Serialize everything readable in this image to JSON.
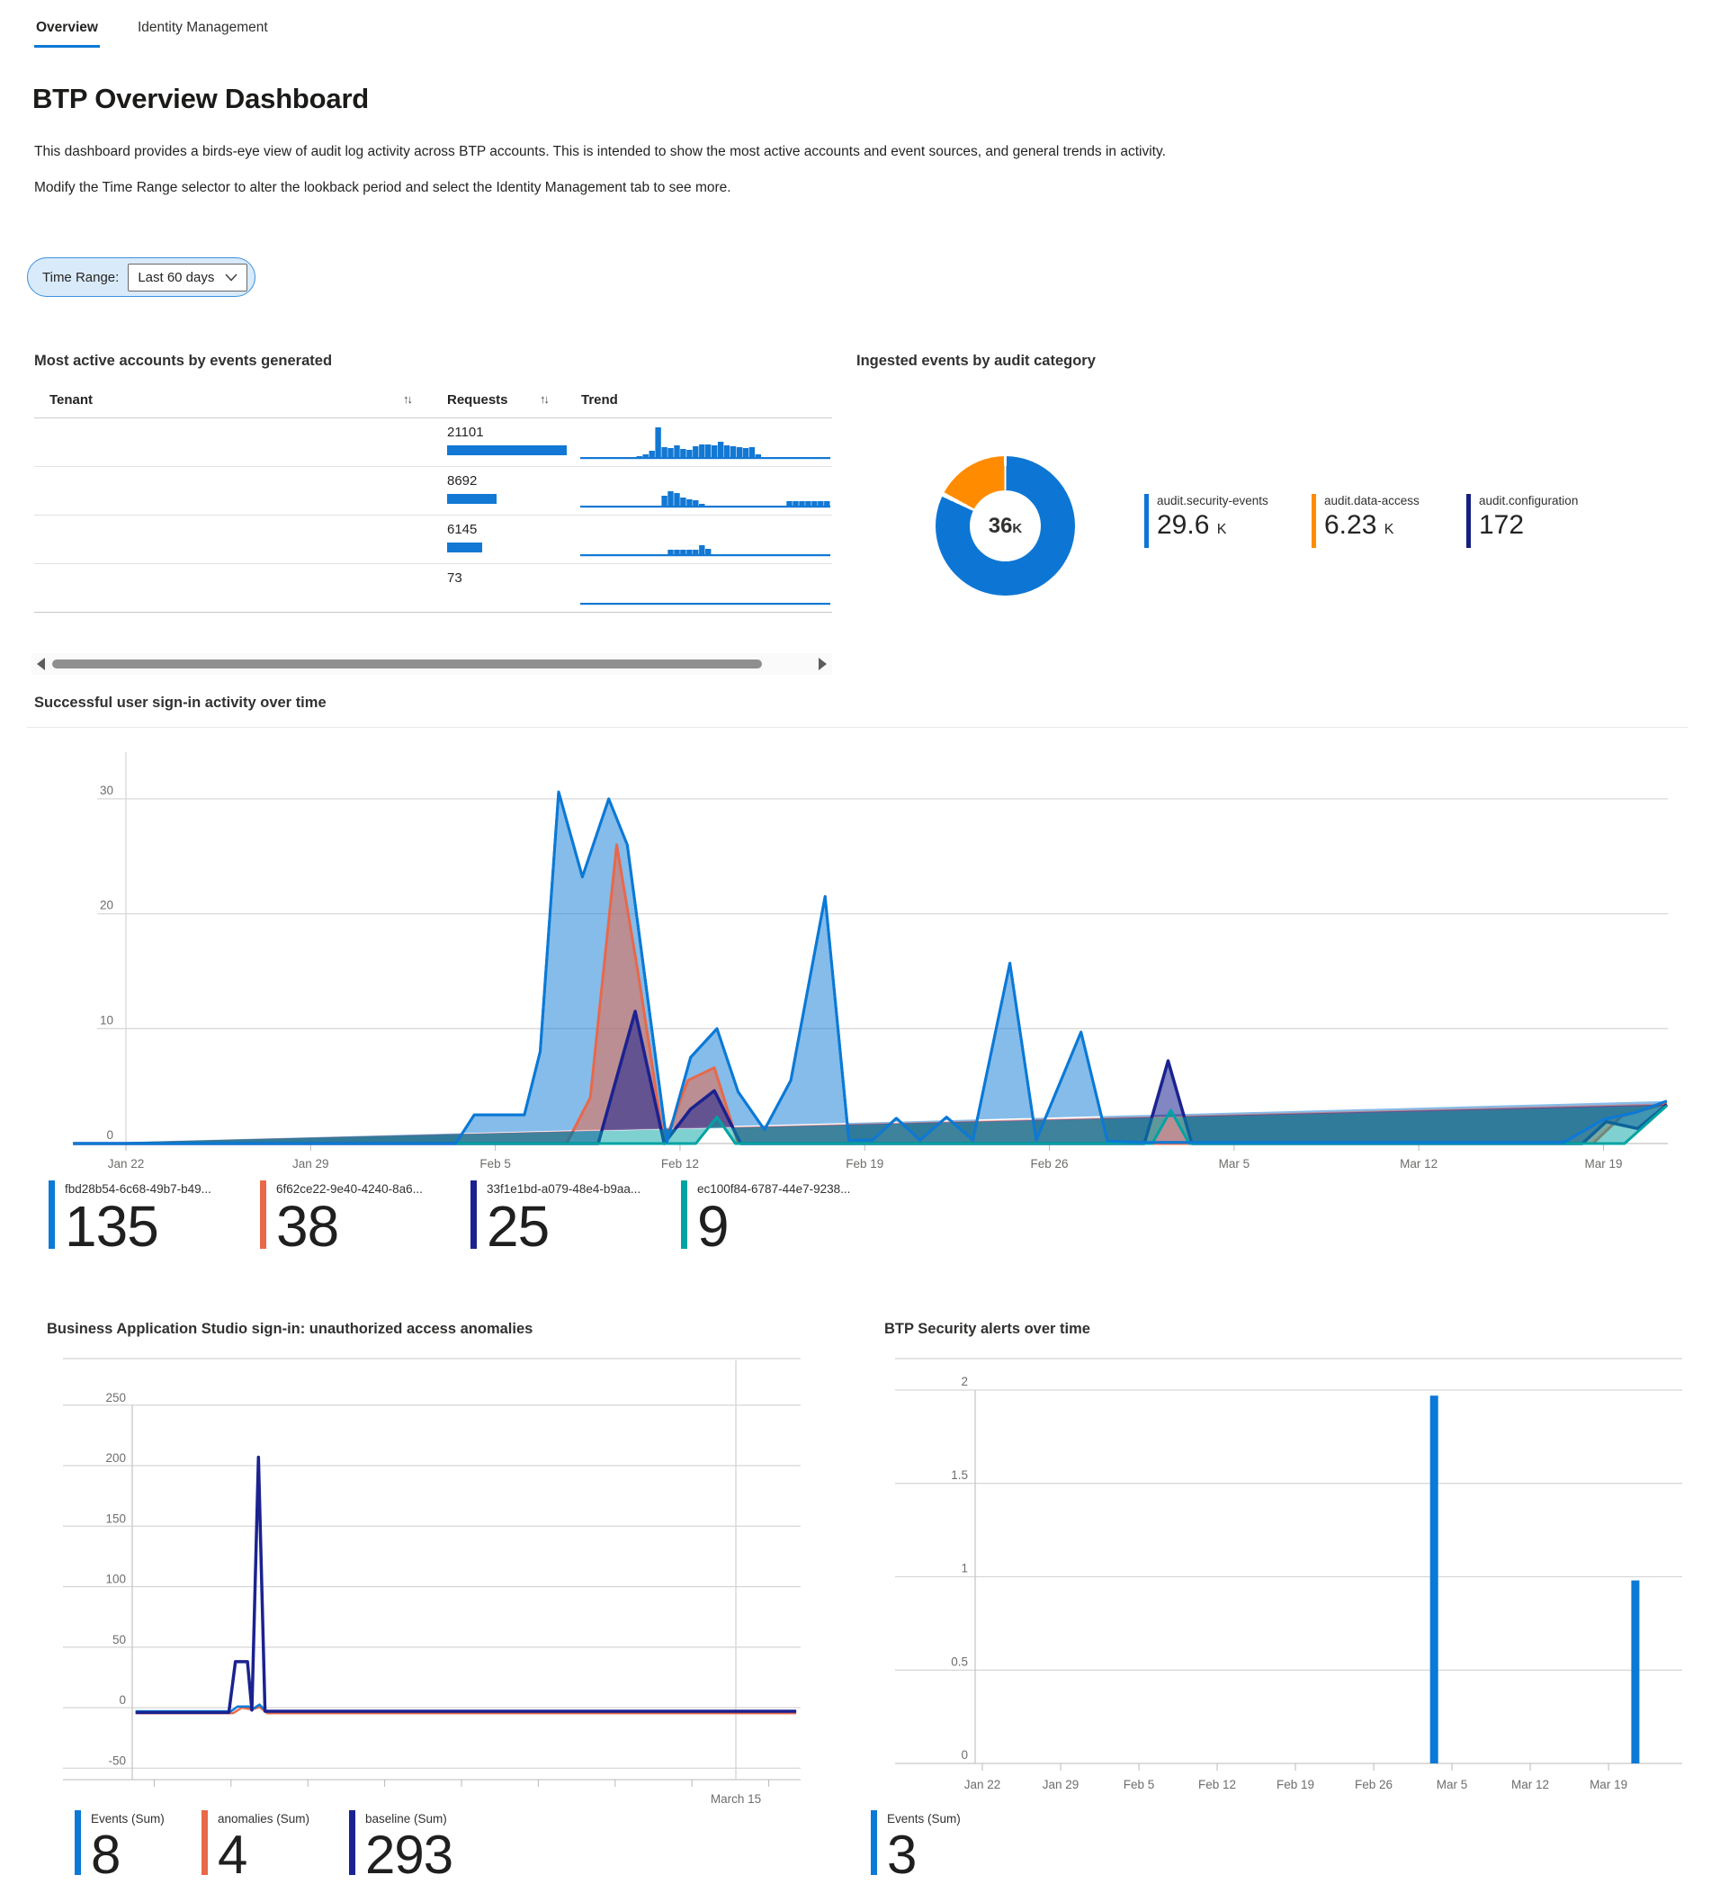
{
  "tabs": [
    {
      "label": "Overview",
      "active": true
    },
    {
      "label": "Identity Management",
      "active": false
    }
  ],
  "header": {
    "title": "BTP Overview Dashboard",
    "description1": "This dashboard provides a birds-eye view of audit log activity across BTP accounts. This is intended to show the most active accounts and event sources, and general trends in activity.",
    "description2": "Modify the Time Range selector to alter the lookback period and select the Identity Management tab to see more."
  },
  "time_range": {
    "label": "Time Range:",
    "value": "Last 60 days"
  },
  "icons": {
    "sort": "↑↓"
  },
  "colors": {
    "accent": "#0b79d6",
    "bar_blue": "#1278d4",
    "salmon": "#e8684a",
    "navy": "#1b2290",
    "teal": "#00a3a3",
    "orange": "#ff8c00",
    "donut_navy": "#16207c"
  },
  "accounts_table": {
    "title": "Most active accounts by events generated",
    "columns": [
      "Tenant",
      "Requests",
      "Trend"
    ],
    "max_requests": 21101,
    "rows": [
      {
        "tenant": "",
        "requests": "21101",
        "requests_num": 21101,
        "trend": [
          1,
          1,
          1,
          1,
          1,
          1,
          1,
          1,
          1,
          2,
          4,
          8,
          34,
          12,
          11,
          14,
          10,
          9,
          13,
          15,
          15,
          14,
          18,
          14,
          13,
          12,
          11,
          12,
          4,
          1,
          1,
          1,
          1,
          1,
          1,
          1,
          1,
          1,
          1,
          1
        ]
      },
      {
        "tenant": "",
        "requests": "8692",
        "requests_num": 8692,
        "trend": [
          1,
          1,
          1,
          1,
          1,
          1,
          1,
          1,
          1,
          1,
          1,
          1,
          1,
          12,
          17,
          15,
          10,
          8,
          7,
          3,
          1,
          1,
          1,
          1,
          1,
          1,
          1,
          1,
          1,
          1,
          1,
          1,
          1,
          6,
          6,
          6,
          6,
          6,
          6,
          6
        ]
      },
      {
        "tenant": "",
        "requests": "6145",
        "requests_num": 6145,
        "trend": [
          1,
          1,
          1,
          1,
          1,
          1,
          1,
          1,
          1,
          1,
          1,
          1,
          1,
          1,
          6,
          6,
          6,
          6,
          6,
          11,
          7,
          1,
          1,
          1,
          1,
          1,
          1,
          1,
          1,
          1,
          1,
          1,
          1,
          1,
          1,
          1,
          1,
          1,
          1,
          1
        ]
      },
      {
        "tenant": "",
        "requests": "73",
        "requests_num": 73,
        "trend": [
          1,
          1,
          1,
          1,
          1,
          1,
          1,
          1,
          1,
          1,
          1,
          1,
          1,
          1,
          1,
          1,
          1,
          1,
          1,
          1,
          1,
          1,
          1,
          1,
          1,
          1,
          1,
          1,
          1,
          1,
          1,
          1,
          1,
          1,
          1,
          1,
          1,
          1,
          1,
          1
        ]
      }
    ]
  },
  "chart_data": [
    {
      "id": "category_donut",
      "type": "pie",
      "title": "Ingested events by audit category",
      "center_value": "36",
      "center_unit": "K",
      "slices": [
        {
          "label": "audit.security-events",
          "value": 29600,
          "value_label": "29.6",
          "unit": "K",
          "color": "#0d76d4"
        },
        {
          "label": "audit.configuration",
          "value": 172,
          "value_label": "172",
          "unit": "",
          "color": "#16207c"
        },
        {
          "label": "audit.data-access",
          "value": 6230,
          "value_label": "6.23",
          "unit": "K",
          "color": "#ff8c00"
        }
      ],
      "legend_order": [
        0,
        2,
        1
      ]
    },
    {
      "id": "signin_area",
      "type": "area",
      "title": "Successful user sign-in activity over time",
      "y_ticks": [
        {
          "v": 30,
          "label": "30"
        },
        {
          "v": 20,
          "label": "20"
        },
        {
          "v": 10,
          "label": "10"
        },
        {
          "v": 0,
          "label": "0"
        }
      ],
      "x_ticks": [
        {
          "day": 2,
          "label": "Jan 22"
        },
        {
          "day": 9,
          "label": "Jan 29"
        },
        {
          "day": 16,
          "label": "Feb 5"
        },
        {
          "day": 23,
          "label": "Feb 12"
        },
        {
          "day": 30,
          "label": "Feb 19"
        },
        {
          "day": 37,
          "label": "Feb 26"
        },
        {
          "day": 44,
          "label": "Mar 5"
        },
        {
          "day": 51,
          "label": "Mar 12"
        },
        {
          "day": 58,
          "label": "Mar 19"
        }
      ],
      "ylim": [
        0,
        34
      ],
      "series": [
        {
          "legend_label": "fbd28b54-6c68-49b7-b49...",
          "total": "135",
          "color": "#0b79d6",
          "fill_opacity": 0.5,
          "stroke_width": 3,
          "points": [
            [
              0,
              0
            ],
            [
              14.5,
              0
            ],
            [
              15.2,
              2.5
            ],
            [
              17.1,
              2.5
            ],
            [
              17.7,
              8
            ],
            [
              18.4,
              30.6
            ],
            [
              19.3,
              23.2
            ],
            [
              20.3,
              30
            ],
            [
              21,
              26
            ],
            [
              22.5,
              0.1
            ],
            [
              23.4,
              7.5
            ],
            [
              24.4,
              10
            ],
            [
              25.2,
              4.5
            ],
            [
              26.2,
              1.2
            ],
            [
              27.2,
              5.5
            ],
            [
              28.5,
              21.5
            ],
            [
              29.4,
              0.3
            ],
            [
              30.3,
              0.3
            ],
            [
              31.2,
              2.2
            ],
            [
              32.1,
              0.3
            ],
            [
              33.1,
              2.3
            ],
            [
              34.1,
              0.3
            ],
            [
              35.5,
              15.7
            ],
            [
              36.5,
              0.3
            ],
            [
              38.2,
              9.7
            ],
            [
              39.2,
              0.2
            ],
            [
              40.5,
              0.1
            ],
            [
              56.5,
              0.1
            ],
            [
              58,
              2.1
            ],
            [
              59.2,
              2.7
            ],
            [
              60.4,
              3.7
            ]
          ]
        },
        {
          "legend_label": "6f62ce22-9e40-4240-8a6...",
          "total": "38",
          "color": "#e8684a",
          "fill_opacity": 0.55,
          "stroke_width": 3,
          "points": [
            [
              0,
              0
            ],
            [
              18.7,
              0
            ],
            [
              19.6,
              4
            ],
            [
              20.6,
              26
            ],
            [
              21.4,
              15
            ],
            [
              22.4,
              0
            ],
            [
              23.3,
              5.5
            ],
            [
              24.3,
              6.6
            ],
            [
              25.2,
              0
            ],
            [
              26,
              0
            ],
            [
              57.6,
              0
            ],
            [
              58.7,
              2.4
            ],
            [
              60.4,
              3.5
            ]
          ]
        },
        {
          "legend_label": "33f1e1bd-a079-48e4-b9aa...",
          "total": "25",
          "color": "#1b2290",
          "fill_opacity": 0.55,
          "stroke_width": 3.5,
          "points": [
            [
              0,
              0
            ],
            [
              19.9,
              0
            ],
            [
              21.3,
              11.5
            ],
            [
              22.4,
              0
            ],
            [
              23.4,
              3
            ],
            [
              24.3,
              4.6
            ],
            [
              25.3,
              0
            ],
            [
              40.6,
              0
            ],
            [
              41.5,
              7.2
            ],
            [
              42.4,
              0
            ],
            [
              57.2,
              0
            ],
            [
              58.1,
              1.9
            ],
            [
              59.3,
              1.3
            ],
            [
              60.4,
              3.4
            ]
          ]
        },
        {
          "legend_label": "ec100f84-6787-44e7-9238...",
          "total": "9",
          "color": "#00a3a3",
          "fill_opacity": 0.5,
          "stroke_width": 3,
          "points": [
            [
              0,
              0
            ],
            [
              23.6,
              0
            ],
            [
              24.4,
              2.3
            ],
            [
              25.1,
              0
            ],
            [
              40.9,
              0
            ],
            [
              41.6,
              2.9
            ],
            [
              42.3,
              0
            ],
            [
              58.8,
              0
            ],
            [
              60.4,
              3.3
            ]
          ]
        }
      ]
    },
    {
      "id": "bas_anomalies",
      "type": "line",
      "title": "Business Application Studio sign-in: unauthorized access anomalies",
      "y_ticks": [
        {
          "v": 250,
          "label": "250"
        },
        {
          "v": 200,
          "label": "200"
        },
        {
          "v": 150,
          "label": "150"
        },
        {
          "v": 100,
          "label": "100"
        },
        {
          "v": 50,
          "label": "50"
        },
        {
          "v": 0,
          "label": "0"
        },
        {
          "v": -50,
          "label": "-50"
        }
      ],
      "x_ticks_days": [
        2,
        9,
        16,
        23,
        30,
        37,
        44,
        51,
        58
      ],
      "x_marker": {
        "day": 55,
        "label": "March 15"
      },
      "ylim": [
        -50,
        250
      ],
      "series": [
        {
          "legend_label": "anomalies (Sum)",
          "total": "4",
          "color": "#e8684a",
          "stroke_width": 2.5,
          "points": [
            [
              0.3,
              -4.5
            ],
            [
              9.2,
              -4.5
            ],
            [
              10,
              0
            ],
            [
              10.9,
              -1.5
            ],
            [
              11.6,
              0.5
            ],
            [
              12.3,
              -4.5
            ],
            [
              60.5,
              -4.5
            ]
          ]
        },
        {
          "legend_label": "Events (Sum)",
          "total": "8",
          "color": "#0b79d6",
          "stroke_width": 2.5,
          "points": [
            [
              0.3,
              -3
            ],
            [
              9,
              -3
            ],
            [
              9.6,
              1
            ],
            [
              10.6,
              1
            ],
            [
              11,
              -1
            ],
            [
              11.6,
              2.5
            ],
            [
              12.2,
              -3
            ],
            [
              60.5,
              -3
            ]
          ]
        },
        {
          "legend_label": "baseline (Sum)",
          "total": "293",
          "color": "#1b2290",
          "stroke_width": 3.5,
          "points": [
            [
              0.3,
              -4
            ],
            [
              8.8,
              -4
            ],
            [
              9.4,
              38
            ],
            [
              10.5,
              38
            ],
            [
              10.9,
              -2
            ],
            [
              11.5,
              207
            ],
            [
              12.1,
              -3
            ],
            [
              60.5,
              -3
            ]
          ]
        }
      ],
      "legend_display_order": [
        1,
        0,
        2
      ]
    },
    {
      "id": "security_alerts",
      "type": "bar",
      "title": "BTP Security alerts over time",
      "y_ticks": [
        {
          "v": 2,
          "label": "2"
        },
        {
          "v": 1.5,
          "label": "1.5"
        },
        {
          "v": 1,
          "label": "1"
        },
        {
          "v": 0.5,
          "label": "0.5"
        },
        {
          "v": 0,
          "label": "0"
        }
      ],
      "x_ticks": [
        {
          "day": 2,
          "label": "Jan 22"
        },
        {
          "day": 9,
          "label": "Jan 29"
        },
        {
          "day": 16,
          "label": "Feb 5"
        },
        {
          "day": 23,
          "label": "Feb 12"
        },
        {
          "day": 30,
          "label": "Feb 19"
        },
        {
          "day": 37,
          "label": "Feb 26"
        },
        {
          "day": 44,
          "label": "Mar 5"
        },
        {
          "day": 51,
          "label": "Mar 12"
        },
        {
          "day": 58,
          "label": "Mar 19"
        }
      ],
      "ylim": [
        0,
        2
      ],
      "bars": [
        {
          "day": 42.4,
          "value": 1.97
        },
        {
          "day": 60.4,
          "value": 0.98
        }
      ],
      "bar_color": "#0b79d6",
      "series": [
        {
          "legend_label": "Events (Sum)",
          "total": "3",
          "color": "#0b79d6"
        }
      ]
    }
  ]
}
